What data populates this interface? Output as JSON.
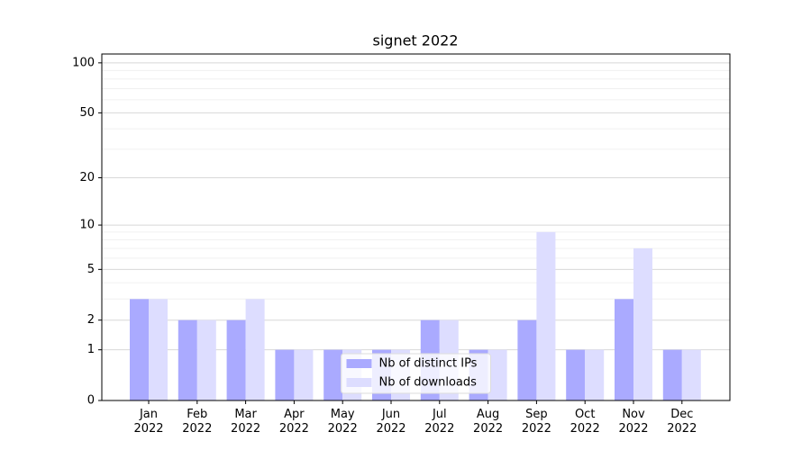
{
  "chart_data": {
    "type": "bar",
    "title": "signet 2022",
    "categories": [
      "Jan\n2022",
      "Feb\n2022",
      "Mar\n2022",
      "Apr\n2022",
      "May\n2022",
      "Jun\n2022",
      "Jul\n2022",
      "Aug\n2022",
      "Sep\n2022",
      "Oct\n2022",
      "Nov\n2022",
      "Dec\n2022"
    ],
    "series": [
      {
        "name": "Nb of distinct IPs",
        "color": "#aaaaff",
        "values": [
          3,
          2,
          2,
          1,
          1,
          1,
          2,
          1,
          2,
          1,
          3,
          1
        ]
      },
      {
        "name": "Nb of downloads",
        "color": "#ddddff",
        "values": [
          3,
          2,
          3,
          1,
          1,
          1,
          2,
          1,
          9,
          1,
          7,
          1
        ]
      }
    ],
    "yscale": "log1p",
    "ylim": [
      0,
      113
    ],
    "yticks": [
      0,
      1,
      2,
      5,
      10,
      20,
      50,
      100
    ],
    "yminorticks": [
      3,
      4,
      6,
      7,
      8,
      9,
      30,
      40,
      60,
      70,
      80,
      90
    ],
    "grid": true,
    "legend": "lower center"
  }
}
